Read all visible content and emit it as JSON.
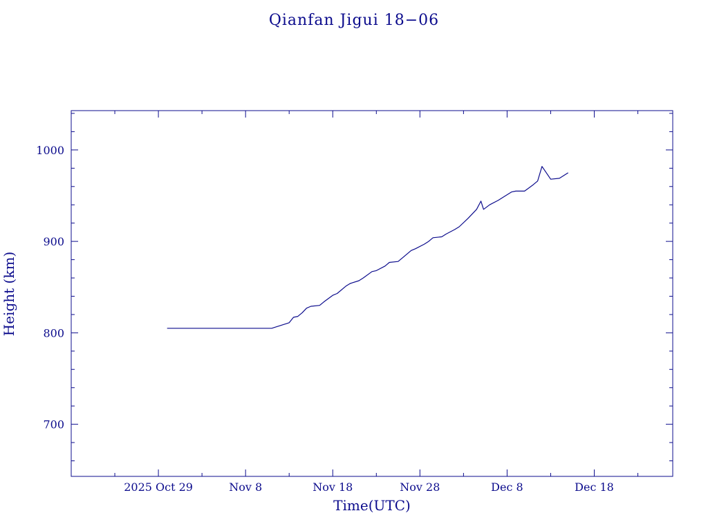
{
  "chart_data": {
    "type": "line",
    "title": "Qianfan Jigui 18−06",
    "xlabel": "Time(UTC)",
    "ylabel": "Height (km)",
    "x_date_format": "YYYY-MM-DD",
    "xlim": [
      "2025-10-19",
      "2025-12-27"
    ],
    "ylim": [
      643,
      1043
    ],
    "x_major_ticks": [
      {
        "x": "2025-10-29",
        "label": "2025 Oct 29"
      },
      {
        "x": "2025-11-08",
        "label": "Nov  8"
      },
      {
        "x": "2025-11-18",
        "label": "Nov 18"
      },
      {
        "x": "2025-11-28",
        "label": "Nov 28"
      },
      {
        "x": "2025-12-08",
        "label": "Dec  8"
      },
      {
        "x": "2025-12-18",
        "label": "Dec 18"
      }
    ],
    "x_minor_ticks": [
      "2025-10-24",
      "2025-11-03",
      "2025-11-13",
      "2025-11-23",
      "2025-12-03",
      "2025-12-13",
      "2025-12-23"
    ],
    "y_major_ticks": [
      {
        "y": 700,
        "label": "700"
      },
      {
        "y": 800,
        "label": "800"
      },
      {
        "y": 900,
        "label": "900"
      },
      {
        "y": 1000,
        "label": "1000"
      }
    ],
    "y_minor_ticks": [
      660,
      680,
      720,
      740,
      760,
      780,
      820,
      840,
      860,
      880,
      920,
      940,
      960,
      980,
      1020,
      1040
    ],
    "grid": false,
    "colors": {
      "axis": "#0b0b8c",
      "line": "#0b0b8c",
      "background": "#ffffff"
    },
    "series": [
      {
        "points": [
          [
            "2025-10-30",
            805
          ],
          [
            "2025-11-05",
            805
          ],
          [
            "2025-11-11",
            805
          ],
          [
            "2025-11-12",
            808
          ],
          [
            "2025-11-13",
            811
          ],
          [
            "2025-11-13.5",
            817
          ],
          [
            "2025-11-14",
            818
          ],
          [
            "2025-11-14.5",
            822
          ],
          [
            "2025-11-15",
            827
          ],
          [
            "2025-11-15.5",
            829
          ],
          [
            "2025-11-16.5",
            830
          ],
          [
            "2025-11-17",
            834
          ],
          [
            "2025-11-18",
            841
          ],
          [
            "2025-11-18.5",
            843
          ],
          [
            "2025-11-19.5",
            851
          ],
          [
            "2025-11-20",
            854
          ],
          [
            "2025-11-21",
            857
          ],
          [
            "2025-11-21.5",
            860
          ],
          [
            "2025-11-22.5",
            867
          ],
          [
            "2025-11-23",
            868
          ],
          [
            "2025-11-24",
            873
          ],
          [
            "2025-11-24.5",
            877
          ],
          [
            "2025-11-25.5",
            878
          ],
          [
            "2025-11-26",
            882
          ],
          [
            "2025-11-27",
            890
          ],
          [
            "2025-11-27.5",
            892
          ],
          [
            "2025-11-28.5",
            897
          ],
          [
            "2025-11-29",
            900
          ],
          [
            "2025-11-29.5",
            904
          ],
          [
            "2025-11-30.5",
            905
          ],
          [
            "2025-12-01",
            908
          ],
          [
            "2025-12-02",
            913
          ],
          [
            "2025-12-02.5",
            916
          ],
          [
            "2025-12-03.5",
            925
          ],
          [
            "2025-12-04.5",
            935
          ],
          [
            "2025-12-05",
            944
          ],
          [
            "2025-12-05.3",
            935
          ],
          [
            "2025-12-06",
            940
          ],
          [
            "2025-12-07",
            945
          ],
          [
            "2025-12-07.5",
            948
          ],
          [
            "2025-12-08.5",
            954
          ],
          [
            "2025-12-09",
            955
          ],
          [
            "2025-12-10",
            955
          ],
          [
            "2025-12-11",
            962
          ],
          [
            "2025-12-11.5",
            966
          ],
          [
            "2025-12-12",
            982
          ],
          [
            "2025-12-13",
            968
          ],
          [
            "2025-12-14",
            969
          ],
          [
            "2025-12-14.5",
            972
          ],
          [
            "2025-12-15",
            975
          ]
        ]
      }
    ]
  }
}
